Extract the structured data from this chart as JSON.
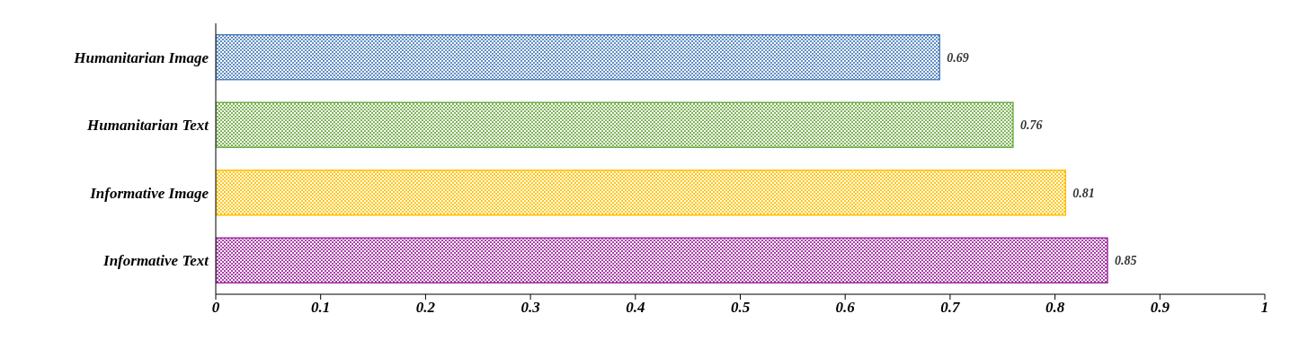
{
  "chart_data": {
    "type": "bar",
    "orientation": "horizontal",
    "categories": [
      "Humanitarian Image",
      "Humanitarian Text",
      "Informative Image",
      "Informative Text"
    ],
    "values": [
      0.69,
      0.76,
      0.81,
      0.85
    ],
    "colors": [
      "#4f81bd",
      "#70ad47",
      "#ffc000",
      "#a02ba0"
    ],
    "xlim": [
      0,
      1
    ],
    "xticks": [
      0,
      0.1,
      0.2,
      0.3,
      0.4,
      0.5,
      0.6,
      0.7,
      0.8,
      0.9,
      1
    ],
    "grid": false,
    "data_labels": true
  }
}
